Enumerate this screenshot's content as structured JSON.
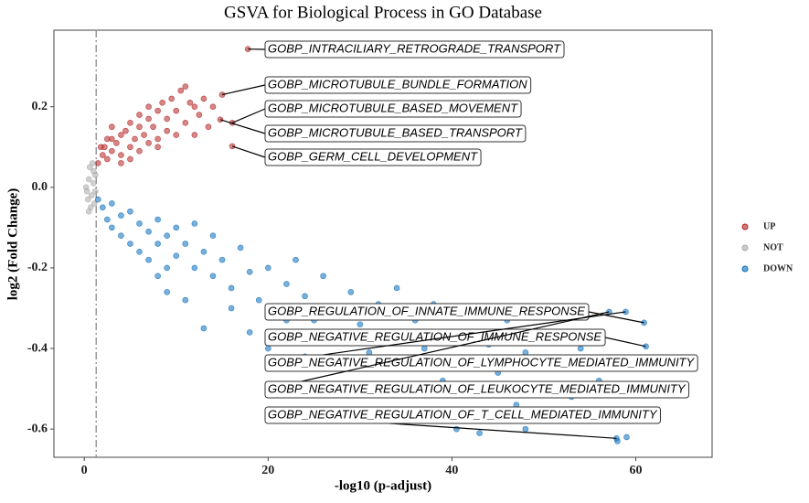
{
  "chart_data": {
    "type": "scatter",
    "title": "GSVA for Biological Process in GO Database",
    "x_label": "-log10 (p-adjust)",
    "y_label": "log2 (Fold Change)",
    "xlim": [
      -3.3,
      68.3
    ],
    "ylim": [
      -0.67,
      0.39
    ],
    "xticks": [
      0,
      20,
      40,
      60
    ],
    "yticks": [
      0.2,
      {
        "value": 0,
        "label": "0.0"
      },
      -0.2,
      -0.4,
      -0.6
    ],
    "threshold_x": 1.3,
    "series": [
      {
        "name": "UP",
        "color": "#b22222",
        "x": [
          1.5,
          2,
          2.2,
          2.5,
          3,
          3,
          3.5,
          4,
          4,
          4.5,
          5,
          5,
          5.5,
          6,
          6,
          6.5,
          7,
          7,
          7.5,
          8,
          8,
          8.5,
          9,
          9.5,
          10,
          10.5,
          11,
          11,
          11.5,
          12,
          12.5,
          13,
          13.5,
          14,
          3,
          2.5,
          4,
          5,
          1.8,
          6,
          7,
          9,
          10,
          12,
          8,
          17.8,
          15,
          16.1,
          14.8,
          16.1
        ],
        "y": [
          0.06,
          0.08,
          0.1,
          0.07,
          0.12,
          0.09,
          0.11,
          0.13,
          0.08,
          0.14,
          0.1,
          0.16,
          0.12,
          0.15,
          0.18,
          0.13,
          0.17,
          0.2,
          0.15,
          0.19,
          0.12,
          0.21,
          0.17,
          0.22,
          0.19,
          0.24,
          0.16,
          0.25,
          0.21,
          0.2,
          0.18,
          0.22,
          0.15,
          0.2,
          0.15,
          0.12,
          0.06,
          0.07,
          0.1,
          0.09,
          0.11,
          0.14,
          0.13,
          0.13,
          0.1,
          0.343,
          0.23,
          0.16,
          0.168,
          0.102
        ]
      },
      {
        "name": "NOT",
        "color": "#aaaaaa",
        "x": [
          0.2,
          0.5,
          0.8,
          1,
          0.3,
          0.6,
          1.1,
          0.9,
          0.4,
          1.2,
          0.7,
          1,
          0.5,
          1.2
        ],
        "y": [
          0,
          0.02,
          -0.02,
          0.04,
          -0.01,
          0.05,
          -0.04,
          0.06,
          -0.03,
          0.03,
          -0.05,
          0.01,
          -0.06,
          -0.01
        ]
      },
      {
        "name": "DOWN",
        "color": "#0a6ebd",
        "x": [
          1.5,
          2,
          2.5,
          3,
          3,
          4,
          4,
          5,
          5,
          6,
          6,
          7,
          7,
          8,
          8,
          9,
          9,
          10,
          10,
          11,
          12,
          12,
          13,
          14,
          14,
          15,
          16,
          17,
          18,
          19,
          20,
          21,
          22,
          23,
          24,
          25,
          26,
          27,
          28,
          29,
          30,
          31,
          32,
          33,
          34,
          35,
          36,
          37,
          38,
          39,
          40,
          41,
          42,
          43,
          44,
          45,
          46,
          47,
          48,
          49,
          50,
          51,
          52,
          53,
          54,
          55,
          56,
          40.5,
          43,
          48,
          59,
          58,
          11,
          13,
          16,
          18,
          20,
          22,
          24,
          8,
          9,
          60.9,
          61.1,
          58.9,
          57.1,
          57.9
        ],
        "y": [
          -0.03,
          -0.05,
          -0.08,
          -0.04,
          -0.1,
          -0.07,
          -0.12,
          -0.06,
          -0.14,
          -0.09,
          -0.16,
          -0.11,
          -0.18,
          -0.08,
          -0.14,
          -0.12,
          -0.2,
          -0.1,
          -0.17,
          -0.14,
          -0.09,
          -0.2,
          -0.16,
          -0.12,
          -0.22,
          -0.18,
          -0.25,
          -0.15,
          -0.21,
          -0.28,
          -0.2,
          -0.31,
          -0.24,
          -0.18,
          -0.27,
          -0.33,
          -0.22,
          -0.3,
          -0.37,
          -0.26,
          -0.34,
          -0.41,
          -0.29,
          -0.38,
          -0.25,
          -0.45,
          -0.33,
          -0.4,
          -0.29,
          -0.48,
          -0.36,
          -0.43,
          -0.31,
          -0.5,
          -0.39,
          -0.46,
          -0.33,
          -0.54,
          -0.41,
          -0.5,
          -0.37,
          -0.56,
          -0.44,
          -0.52,
          -0.4,
          -0.58,
          -0.48,
          -0.6,
          -0.61,
          -0.6,
          -0.62,
          -0.63,
          -0.28,
          -0.35,
          -0.3,
          -0.36,
          -0.4,
          -0.33,
          -0.42,
          -0.22,
          -0.26,
          -0.336,
          -0.395,
          -0.309,
          -0.309,
          -0.623
        ]
      }
    ],
    "annotations": [
      {
        "text": "GOBP_INTRACILIARY_RETROGRADE_TRANSPORT",
        "x": 17.8,
        "y": 0.343
      },
      {
        "text": "GOBP_MICROTUBULE_BUNDLE_FORMATION",
        "x": 15,
        "y": 0.23
      },
      {
        "text": "GOBP_MICROTUBULE_BASED_MOVEMENT",
        "x": 16.1,
        "y": 0.16
      },
      {
        "text": "GOBP_MICROTUBULE_BASED_TRANSPORT",
        "x": 14.8,
        "y": 0.168
      },
      {
        "text": "GOBP_GERM_CELL_DEVELOPMENT",
        "x": 16.1,
        "y": 0.102
      },
      {
        "text": "GOBP_REGULATION_OF_INNATE_IMMUNE_RESPONSE",
        "x": 60.9,
        "y": -0.336
      },
      {
        "text": "GOBP_NEGATIVE_REGULATION_OF_IMMUNE_RESPONSE",
        "x": 61.1,
        "y": -0.395
      },
      {
        "text": "GOBP_NEGATIVE_REGULATION_OF_LYMPHOCYTE_MEDIATED_IMMUNITY",
        "x": 58.9,
        "y": -0.309
      },
      {
        "text": "GOBP_NEGATIVE_REGULATION_OF_LEUKOCYTE_MEDIATED_IMMUNITY",
        "x": 57.1,
        "y": -0.309
      },
      {
        "text": "GOBP_NEGATIVE_REGULATION_OF_T_CELL_MEDIATED_IMMUNITY",
        "x": 57.9,
        "y": -0.623
      }
    ]
  }
}
